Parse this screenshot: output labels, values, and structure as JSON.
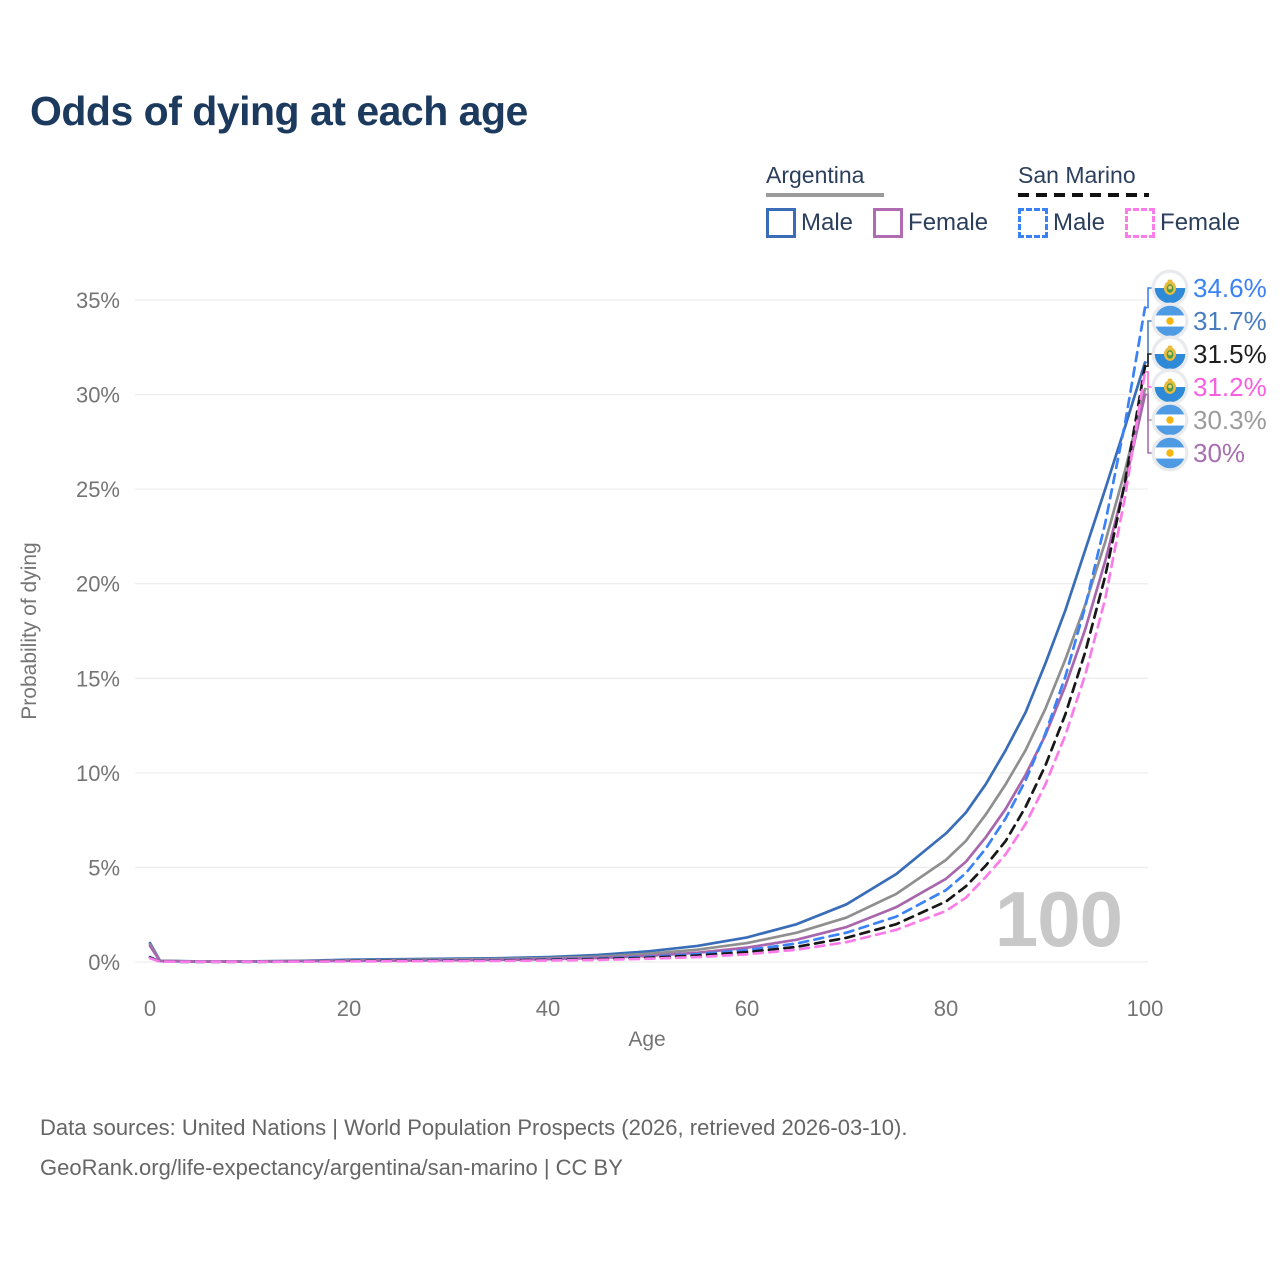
{
  "title": "Odds of dying at each age",
  "legend": {
    "groups": [
      {
        "name": "Argentina",
        "underline": {
          "style": "solid",
          "color": "#9b9b9b"
        },
        "items": [
          {
            "label": "Male",
            "swatch": {
              "style": "solid",
              "color": "#3a6db8"
            }
          },
          {
            "label": "Female",
            "swatch": {
              "style": "solid",
              "color": "#b06cb3"
            }
          }
        ]
      },
      {
        "name": "San Marino",
        "underline": {
          "style": "dashed",
          "color": "#111111"
        },
        "items": [
          {
            "label": "Male",
            "swatch": {
              "style": "dashed",
              "color": "#3b82f6"
            }
          },
          {
            "label": "Female",
            "swatch": {
              "style": "dashed",
              "color": "#fb7ce8"
            }
          }
        ]
      }
    ]
  },
  "chart_data": {
    "type": "line",
    "title": "Odds of dying at each age",
    "xlabel": "Age",
    "ylabel": "Probability of dying",
    "xlim": [
      0,
      100
    ],
    "ylim": [
      0,
      35
    ],
    "grid": "horizontal",
    "age_marker": "100",
    "xticks": [
      {
        "v": 0,
        "label": "0"
      },
      {
        "v": 20,
        "label": "20"
      },
      {
        "v": 40,
        "label": "40"
      },
      {
        "v": 60,
        "label": "60"
      },
      {
        "v": 80,
        "label": "80"
      },
      {
        "v": 100,
        "label": "100"
      }
    ],
    "yticks": [
      {
        "v": 0,
        "label": "0%"
      },
      {
        "v": 5,
        "label": "5%"
      },
      {
        "v": 10,
        "label": "10%"
      },
      {
        "v": 15,
        "label": "15%"
      },
      {
        "v": 20,
        "label": "20%"
      },
      {
        "v": 25,
        "label": "25%"
      },
      {
        "v": 30,
        "label": "30%"
      },
      {
        "v": 35,
        "label": "35%"
      }
    ],
    "ages": [
      0,
      1,
      5,
      10,
      15,
      20,
      25,
      30,
      35,
      40,
      45,
      50,
      55,
      60,
      65,
      70,
      75,
      80,
      82,
      84,
      86,
      88,
      90,
      92,
      94,
      96,
      98,
      100
    ],
    "series": [
      {
        "name": "Argentina Male",
        "country": "argentina",
        "sex": "male",
        "style": "solid",
        "color": "#3a6db8",
        "values": [
          1.0,
          0.07,
          0.03,
          0.03,
          0.06,
          0.12,
          0.15,
          0.17,
          0.2,
          0.26,
          0.37,
          0.56,
          0.85,
          1.3,
          2.0,
          3.05,
          4.65,
          6.8,
          7.9,
          9.4,
          11.2,
          13.2,
          15.8,
          18.6,
          21.8,
          25.0,
          28.3,
          31.7
        ]
      },
      {
        "name": "Argentina",
        "country": "argentina",
        "sex": "both",
        "style": "solid",
        "color": "#8f8f8f",
        "values": [
          0.92,
          0.06,
          0.02,
          0.02,
          0.05,
          0.09,
          0.11,
          0.13,
          0.16,
          0.2,
          0.28,
          0.43,
          0.65,
          1.0,
          1.55,
          2.35,
          3.6,
          5.4,
          6.4,
          7.8,
          9.4,
          11.2,
          13.4,
          16.0,
          18.9,
          22.2,
          26.0,
          30.3
        ]
      },
      {
        "name": "Argentina Female",
        "country": "argentina",
        "sex": "female",
        "style": "solid",
        "color": "#a867ad",
        "values": [
          0.85,
          0.05,
          0.02,
          0.02,
          0.04,
          0.06,
          0.07,
          0.09,
          0.11,
          0.15,
          0.21,
          0.32,
          0.49,
          0.76,
          1.18,
          1.85,
          2.9,
          4.4,
          5.3,
          6.6,
          8.1,
          9.9,
          12.0,
          14.6,
          17.6,
          21.2,
          25.3,
          30.0
        ]
      },
      {
        "name": "San Marino Male",
        "country": "san-marino",
        "sex": "male",
        "style": "dashed",
        "color": "#3b82f6",
        "values": [
          0.26,
          0.02,
          0.01,
          0.01,
          0.03,
          0.06,
          0.07,
          0.08,
          0.1,
          0.13,
          0.18,
          0.27,
          0.41,
          0.63,
          0.98,
          1.55,
          2.4,
          3.8,
          4.7,
          6.0,
          7.6,
          9.6,
          12.1,
          15.1,
          18.8,
          23.2,
          28.5,
          34.6
        ]
      },
      {
        "name": "San Marino",
        "country": "san-marino",
        "sex": "both",
        "style": "dashed",
        "color": "#171717",
        "values": [
          0.23,
          0.02,
          0.01,
          0.01,
          0.02,
          0.05,
          0.06,
          0.07,
          0.08,
          0.11,
          0.15,
          0.22,
          0.34,
          0.52,
          0.8,
          1.28,
          2.0,
          3.2,
          4.0,
          5.1,
          6.4,
          8.2,
          10.4,
          13.1,
          16.4,
          20.4,
          25.4,
          31.5
        ]
      },
      {
        "name": "San Marino Female",
        "country": "san-marino",
        "sex": "female",
        "style": "dashed",
        "color": "#fb7ce8",
        "values": [
          0.2,
          0.02,
          0.01,
          0.01,
          0.02,
          0.03,
          0.04,
          0.05,
          0.06,
          0.08,
          0.11,
          0.17,
          0.26,
          0.41,
          0.65,
          1.05,
          1.7,
          2.7,
          3.4,
          4.5,
          5.7,
          7.3,
          9.4,
          12.0,
          15.2,
          19.2,
          24.6,
          31.2
        ]
      }
    ],
    "end_labels": [
      {
        "text": "34.6%",
        "series": "San Marino Male",
        "flag": "san-marino",
        "color": "#3b82f6"
      },
      {
        "text": "31.7%",
        "series": "Argentina Male",
        "flag": "argentina",
        "color": "#4a7dbf"
      },
      {
        "text": "31.5%",
        "series": "San Marino",
        "flag": "san-marino",
        "color": "#1f1f1f"
      },
      {
        "text": "31.2%",
        "series": "San Marino Female",
        "flag": "san-marino",
        "color": "#f75fe0"
      },
      {
        "text": "30.3%",
        "series": "Argentina",
        "flag": "argentina",
        "color": "#9b9b9b"
      },
      {
        "text": "30%",
        "series": "Argentina Female",
        "flag": "argentina",
        "color": "#a76fb0"
      }
    ]
  },
  "footer": {
    "line1": "Data sources: United Nations | World Population Prospects (2026, retrieved 2026-03-10).",
    "line2": "GeoRank.org/life-expectancy/argentina/san-marino | CC BY"
  }
}
